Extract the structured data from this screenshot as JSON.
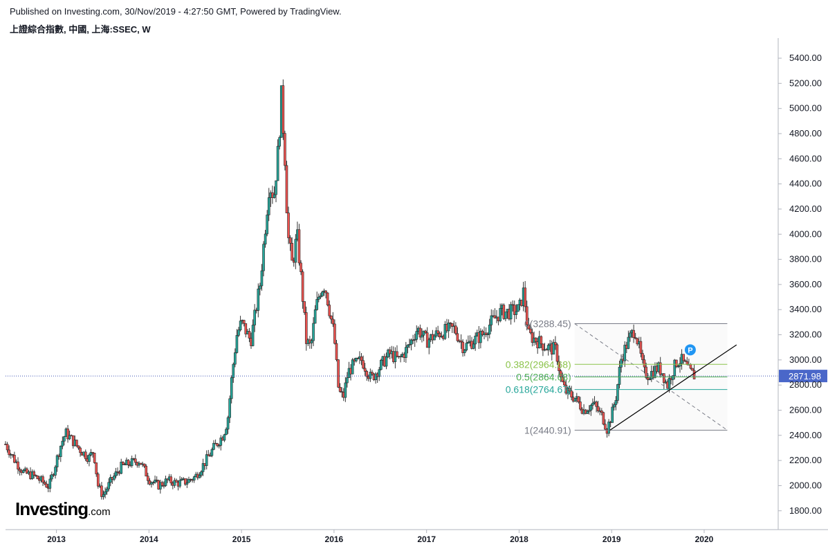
{
  "header": {
    "published": "Published on Investing.com, 30/Nov/2019 - 4:27:50 GMT, Powered by TradingView.",
    "symbol": "上證綜合指數, 中國, 上海:SSEC, W"
  },
  "logo": {
    "main": "Investing",
    "suffix": ".com"
  },
  "colors": {
    "up": "#26a69a",
    "down": "#ef5350",
    "price_line": "#3f51b5",
    "fib_0382": "#8bc34a",
    "fib_05": "#4caf50",
    "fib_0618": "#26a69a",
    "fib_edge": "#787b86",
    "trend": "#000000",
    "marker": "#2196f3"
  },
  "chart_data": {
    "type": "candlestick",
    "interval": "W",
    "price_axis": {
      "ylim": [
        1650,
        5560
      ],
      "ticks": [
        "5400.00",
        "5200.00",
        "5000.00",
        "4800.00",
        "4600.00",
        "4400.00",
        "4200.00",
        "4000.00",
        "3800.00",
        "3600.00",
        "3400.00",
        "3200.00",
        "3000.00",
        "2800.00",
        "2600.00",
        "2400.00",
        "2200.00",
        "2000.00",
        "1800.00"
      ]
    },
    "time_axis": {
      "xlim": [
        2012.45,
        2020.8
      ],
      "ticks": [
        "2013",
        "2014",
        "2015",
        "2016",
        "2017",
        "2018",
        "2019",
        "2020"
      ]
    },
    "last_price": {
      "value": 2871.98,
      "label": "2871.98"
    },
    "series_close": [
      [
        2012.45,
        2330
      ],
      [
        2012.55,
        2200
      ],
      [
        2012.65,
        2100
      ],
      [
        2012.75,
        2080
      ],
      [
        2012.85,
        2030
      ],
      [
        2012.92,
        1990
      ],
      [
        2013.0,
        2200
      ],
      [
        2013.05,
        2330
      ],
      [
        2013.1,
        2420
      ],
      [
        2013.15,
        2380
      ],
      [
        2013.25,
        2290
      ],
      [
        2013.35,
        2220
      ],
      [
        2013.4,
        2280
      ],
      [
        2013.45,
        2000
      ],
      [
        2013.5,
        1920
      ],
      [
        2013.6,
        2050
      ],
      [
        2013.7,
        2150
      ],
      [
        2013.8,
        2180
      ],
      [
        2013.9,
        2200
      ],
      [
        2014.0,
        2050
      ],
      [
        2014.1,
        2000
      ],
      [
        2014.2,
        2040
      ],
      [
        2014.3,
        2020
      ],
      [
        2014.4,
        2030
      ],
      [
        2014.5,
        2070
      ],
      [
        2014.6,
        2180
      ],
      [
        2014.7,
        2300
      ],
      [
        2014.8,
        2400
      ],
      [
        2014.85,
        2520
      ],
      [
        2014.9,
        2900
      ],
      [
        2014.95,
        3200
      ],
      [
        2015.0,
        3300
      ],
      [
        2015.1,
        3150
      ],
      [
        2015.2,
        3600
      ],
      [
        2015.25,
        4000
      ],
      [
        2015.3,
        4400
      ],
      [
        2015.35,
        4300
      ],
      [
        2015.4,
        4700
      ],
      [
        2015.43,
        5100
      ],
      [
        2015.47,
        4600
      ],
      [
        2015.5,
        4000
      ],
      [
        2015.55,
        3750
      ],
      [
        2015.6,
        4000
      ],
      [
        2015.65,
        3600
      ],
      [
        2015.7,
        3150
      ],
      [
        2015.75,
        3100
      ],
      [
        2015.8,
        3400
      ],
      [
        2015.85,
        3550
      ],
      [
        2015.9,
        3600
      ],
      [
        2016.0,
        3200
      ],
      [
        2016.05,
        2750
      ],
      [
        2016.1,
        2700
      ],
      [
        2016.15,
        2900
      ],
      [
        2016.2,
        2950
      ],
      [
        2016.3,
        3000
      ],
      [
        2016.4,
        2850
      ],
      [
        2016.5,
        2950
      ],
      [
        2016.6,
        3050
      ],
      [
        2016.7,
        3000
      ],
      [
        2016.8,
        3100
      ],
      [
        2016.9,
        3250
      ],
      [
        2017.0,
        3150
      ],
      [
        2017.1,
        3200
      ],
      [
        2017.2,
        3230
      ],
      [
        2017.3,
        3250
      ],
      [
        2017.4,
        3100
      ],
      [
        2017.5,
        3150
      ],
      [
        2017.6,
        3200
      ],
      [
        2017.7,
        3300
      ],
      [
        2017.8,
        3380
      ],
      [
        2017.9,
        3380
      ],
      [
        2018.0,
        3400
      ],
      [
        2018.05,
        3550
      ],
      [
        2018.1,
        3200
      ],
      [
        2018.2,
        3150
      ],
      [
        2018.3,
        3100
      ],
      [
        2018.4,
        3080
      ],
      [
        2018.45,
        2850
      ],
      [
        2018.5,
        2750
      ],
      [
        2018.6,
        2700
      ],
      [
        2018.7,
        2600
      ],
      [
        2018.8,
        2650
      ],
      [
        2018.9,
        2550
      ],
      [
        2018.95,
        2450
      ],
      [
        2019.0,
        2560
      ],
      [
        2019.05,
        2720
      ],
      [
        2019.1,
        3000
      ],
      [
        2019.15,
        3100
      ],
      [
        2019.2,
        3180
      ],
      [
        2019.25,
        3250
      ],
      [
        2019.3,
        3080
      ],
      [
        2019.35,
        2900
      ],
      [
        2019.4,
        2880
      ],
      [
        2019.5,
        2940
      ],
      [
        2019.55,
        2900
      ],
      [
        2019.6,
        2790
      ],
      [
        2019.65,
        2900
      ],
      [
        2019.7,
        2980
      ],
      [
        2019.75,
        3000
      ],
      [
        2019.8,
        2950
      ],
      [
        2019.85,
        2900
      ],
      [
        2019.9,
        2872
      ]
    ],
    "fibonacci": [
      {
        "ratio": "0",
        "label": "0(3288.45)",
        "value": 3288.45
      },
      {
        "ratio": "0.382",
        "label": "0.382(2964.68)",
        "value": 2964.68
      },
      {
        "ratio": "0.5",
        "label": "0.5(2864.68)",
        "value": 2864.68
      },
      {
        "ratio": "0.618",
        "label": "0.618(2764.67)",
        "value": 2764.67
      },
      {
        "ratio": "1",
        "label": "1(2440.91)",
        "value": 2440.91
      }
    ],
    "fib_range": {
      "x": [
        2018.6,
        2020.25
      ]
    },
    "trendline": {
      "from": [
        2018.98,
        2440
      ],
      "to": [
        2020.35,
        3120
      ]
    },
    "marker": {
      "label": "P",
      "x": 2019.85,
      "price": 3080
    }
  }
}
